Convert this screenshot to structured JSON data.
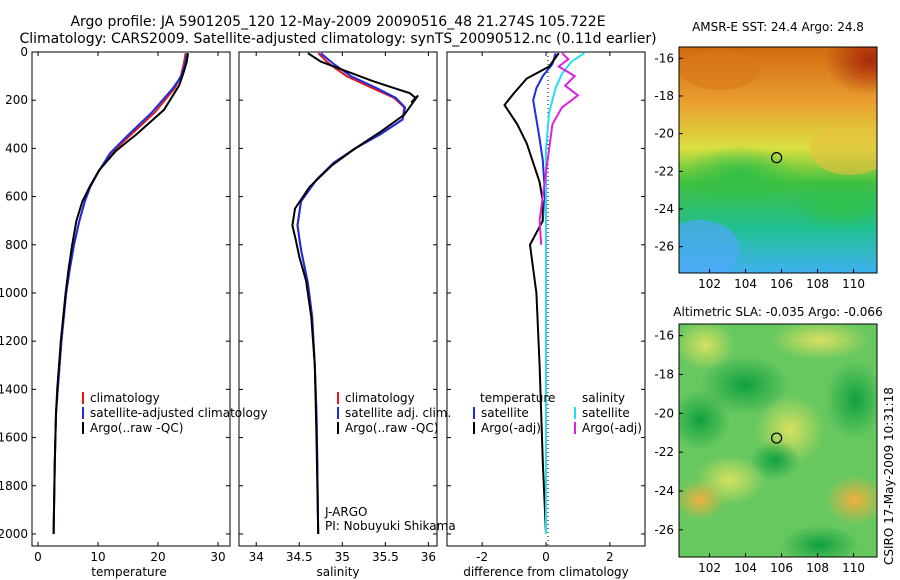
{
  "title": {
    "line1": "Argo profile: JA 5901205_120 12-May-2009 20090516_48 21.274S 105.722E",
    "line2": "Climatology: CARS2009. Satellite-adjusted climatology: synTS_20090512.nc (0.11d earlier)"
  },
  "side_label": "CSIRO 17-May-2009 10:31:18",
  "colors": {
    "climatology": "#e01818",
    "satellite": "#1a2ee0",
    "argo": "#000000",
    "sat_salinity": "#22e0f0",
    "argo_salinity": "#e020e0",
    "marker": "#000000"
  },
  "chart_data": [
    {
      "type": "line",
      "name": "temperature-panel",
      "xlabel": "temperature",
      "ylabel": "",
      "xlim": [
        -1,
        32
      ],
      "ylim": [
        2050,
        0
      ],
      "xticks": [
        0,
        10,
        20,
        30
      ],
      "yticks": [
        0,
        200,
        400,
        600,
        800,
        1000,
        1200,
        1400,
        1600,
        1800,
        2000
      ],
      "legend": {
        "position": "lower-left",
        "entries": [
          "climatology",
          "satellite-adjusted climatology",
          "Argo(..raw -QC)"
        ]
      },
      "series": [
        {
          "name": "climatology",
          "color_key": "climatology",
          "x": [
            24.6,
            24.3,
            23.8,
            22.8,
            19.5,
            15.2,
            12.2,
            10.0,
            8.7,
            7.8,
            6.9,
            6.0,
            5.3,
            4.7,
            4.3,
            3.9,
            3.6,
            3.3,
            3.0,
            2.8,
            2.6
          ],
          "y": [
            5,
            50,
            100,
            150,
            250,
            350,
            420,
            500,
            560,
            620,
            700,
            800,
            900,
            1000,
            1100,
            1200,
            1300,
            1400,
            1500,
            1700,
            2000
          ]
        },
        {
          "name": "satellite-adjusted climatology",
          "color_key": "satellite",
          "x": [
            24.9,
            24.5,
            23.9,
            22.5,
            19.0,
            14.8,
            12.0,
            10.0,
            8.7,
            7.8,
            6.9,
            6.0,
            5.3,
            4.7,
            4.3,
            3.9,
            3.6,
            3.3,
            3.0,
            2.8,
            2.6
          ],
          "y": [
            5,
            50,
            100,
            150,
            250,
            350,
            420,
            500,
            560,
            620,
            700,
            800,
            900,
            1000,
            1100,
            1200,
            1300,
            1400,
            1500,
            1700,
            2000
          ]
        },
        {
          "name": "Argo(..raw -QC)",
          "color_key": "argo",
          "x": [
            25.0,
            24.8,
            24.2,
            23.5,
            21.0,
            16.5,
            13.0,
            10.2,
            8.6,
            7.4,
            6.4,
            5.7,
            5.1,
            4.6,
            4.2,
            3.8,
            3.5,
            3.2,
            3.0,
            2.8,
            2.6
          ],
          "y": [
            5,
            40,
            90,
            140,
            240,
            340,
            410,
            490,
            560,
            620,
            700,
            800,
            900,
            1000,
            1100,
            1200,
            1300,
            1400,
            1500,
            1700,
            2000
          ]
        }
      ]
    },
    {
      "type": "line",
      "name": "salinity-panel",
      "xlabel": "salinity",
      "ylabel": "",
      "xlim": [
        33.8,
        36.1
      ],
      "ylim": [
        2050,
        0
      ],
      "xticks": [
        34,
        34.5,
        35,
        35.5,
        36
      ],
      "legend": {
        "position": "lower-left",
        "entries": [
          "climatology",
          "satellite adj. clim.",
          "Argo(..raw -QC)"
        ]
      },
      "annotation": {
        "lines": [
          "J-ARGO",
          "PI: Nobuyuki Shikama"
        ],
        "position": "bottom-right"
      },
      "series": [
        {
          "name": "climatology",
          "color_key": "climatology",
          "x": [
            34.72,
            34.85,
            35.05,
            35.35,
            35.6,
            35.72,
            35.7,
            35.45,
            35.15,
            34.9,
            34.7,
            34.52,
            34.48,
            34.52,
            34.6,
            34.65,
            34.68,
            34.7,
            34.71,
            34.72
          ],
          "y": [
            5,
            50,
            100,
            150,
            190,
            230,
            280,
            340,
            400,
            460,
            530,
            620,
            720,
            820,
            960,
            1100,
            1300,
            1500,
            1700,
            2000
          ]
        },
        {
          "name": "satellite adj. clim.",
          "color_key": "satellite",
          "x": [
            34.75,
            34.9,
            35.1,
            35.4,
            35.62,
            35.73,
            35.7,
            35.45,
            35.15,
            34.9,
            34.7,
            34.52,
            34.48,
            34.52,
            34.6,
            34.65,
            34.68,
            34.7,
            34.71,
            34.72
          ],
          "y": [
            5,
            50,
            100,
            150,
            190,
            230,
            280,
            340,
            400,
            460,
            530,
            620,
            720,
            820,
            960,
            1100,
            1300,
            1500,
            1700,
            2000
          ]
        },
        {
          "name": "Argo(..raw -QC)",
          "color_key": "argo",
          "x": [
            34.6,
            34.75,
            35.05,
            35.35,
            35.6,
            35.78,
            35.85,
            35.8,
            35.88,
            35.72,
            35.45,
            35.15,
            34.88,
            34.62,
            34.45,
            34.42,
            34.46,
            34.5,
            34.58,
            34.64,
            34.68,
            34.7,
            34.72
          ],
          "y": [
            5,
            40,
            80,
            120,
            150,
            170,
            190,
            210,
            180,
            260,
            330,
            400,
            470,
            560,
            650,
            720,
            780,
            850,
            950,
            1100,
            1300,
            1600,
            2000
          ]
        }
      ]
    },
    {
      "type": "line",
      "name": "difference-panel",
      "xlabel": "difference from climatology",
      "ylabel": "",
      "xlim": [
        -3.1,
        3.1
      ],
      "ylim": [
        2050,
        0
      ],
      "xticks": [
        -2,
        0,
        2
      ],
      "legend": {
        "position": "lower-center",
        "columns": [
          {
            "header": "temperature",
            "entries": [
              "satellite",
              "Argo(-adj)"
            ]
          },
          {
            "header": "salinity",
            "entries": [
              "satellite",
              "Argo(-adj)"
            ]
          }
        ]
      },
      "series": [
        {
          "name": "temperature satellite",
          "color_key": "satellite",
          "x": [
            0.3,
            0.2,
            -0.1,
            -0.3,
            -0.4,
            -0.3,
            -0.2,
            -0.1,
            -0.05,
            0.0,
            0.0,
            0.0,
            0.0
          ],
          "y": [
            5,
            50,
            100,
            150,
            200,
            280,
            360,
            450,
            550,
            700,
            900,
            1200,
            2000
          ]
        },
        {
          "name": "temperature Argo(-adj)",
          "color_key": "argo",
          "x": [
            0.4,
            0.1,
            -0.6,
            -1.0,
            -1.3,
            -0.9,
            -0.6,
            -0.4,
            -0.2,
            -0.1,
            -0.1,
            -0.5,
            -0.3,
            -0.2,
            -0.1,
            0.0
          ],
          "y": [
            5,
            60,
            110,
            170,
            220,
            300,
            380,
            460,
            540,
            620,
            700,
            800,
            1000,
            1300,
            1700,
            2000
          ]
        },
        {
          "name": "salinity satellite",
          "color_key": "sat_salinity",
          "x": [
            1.2,
            0.8,
            0.5,
            0.3,
            0.1,
            0.0,
            0.0,
            0.0,
            0.0,
            0.0
          ],
          "y": [
            5,
            40,
            90,
            150,
            250,
            400,
            600,
            900,
            1400,
            2000
          ]
        },
        {
          "name": "salinity Argo(-adj)",
          "color_key": "argo_salinity",
          "x": [
            0.5,
            0.7,
            0.4,
            0.9,
            0.6,
            1.0,
            0.5,
            0.2,
            0.1,
            0.0,
            -0.1,
            -0.2,
            -0.15
          ],
          "y": [
            5,
            30,
            60,
            100,
            140,
            180,
            230,
            300,
            400,
            500,
            600,
            700,
            800
          ]
        }
      ]
    },
    {
      "type": "heatmap",
      "name": "sst-map",
      "title": "AMSR-E SST: 24.4 Argo: 24.8",
      "xlim": [
        100.3,
        111.3
      ],
      "ylim": [
        -27.4,
        -15.4
      ],
      "xticks": [
        102,
        104,
        106,
        108,
        110
      ],
      "yticks": [
        -16,
        -18,
        -20,
        -22,
        -24,
        -26
      ],
      "marker": {
        "lon": 105.722,
        "lat": -21.274
      }
    },
    {
      "type": "heatmap",
      "name": "sla-map",
      "title": "Altimetric SLA: -0.035 Argo: -0.066",
      "xlim": [
        100.3,
        111.3
      ],
      "ylim": [
        -27.4,
        -15.4
      ],
      "xticks": [
        102,
        104,
        106,
        108,
        110
      ],
      "yticks": [
        -16,
        -18,
        -20,
        -22,
        -24,
        -26
      ],
      "marker": {
        "lon": 105.722,
        "lat": -21.274
      }
    }
  ]
}
